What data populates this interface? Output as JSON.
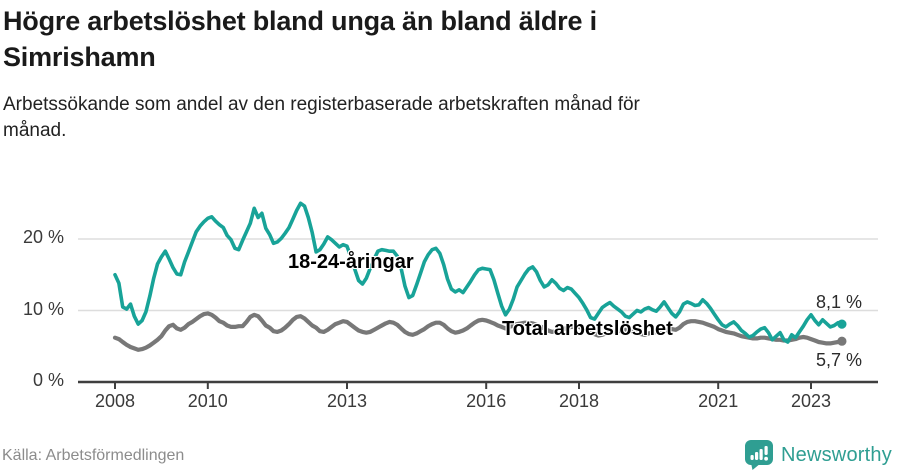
{
  "header": {
    "title_lines": [
      "Högre arbetslöshet bland unga än bland äldre i",
      "Simrishamn"
    ],
    "subtitle_lines": [
      "Arbetssökande som andel av den registerbaserade arbetskraften månad för",
      "månad."
    ]
  },
  "footer": {
    "source": "Källa: Arbetsförmedlingen",
    "brand": "Newsworthy"
  },
  "colors": {
    "youth": "#18a398",
    "total": "#787878",
    "brand": "#2f9e92",
    "grid": "#dddddd",
    "axis": "#3f3f3f",
    "tick_text": "#3a3a3a"
  },
  "chart_data": {
    "type": "line",
    "title": "Högre arbetslöshet bland unga än bland äldre i Simrishamn",
    "subtitle": "Arbetssökande som andel av den registerbaserade arbetskraften månad för månad.",
    "unit": "%",
    "grid": "horizontal",
    "legend_position": "inline-labels",
    "x_start_year": 2008,
    "x_months_per_step": 1,
    "x_end_label_period": "sep 2023",
    "x_tick_years": [
      2008,
      2010,
      2013,
      2016,
      2018,
      2021,
      2023
    ],
    "x_tick_labels": [
      "2008",
      "2010",
      "2013",
      "2016",
      "2018",
      "2021",
      "2023"
    ],
    "y_ticks": [
      0,
      10,
      20
    ],
    "y_tick_labels": [
      "0 %",
      "10 %",
      "20 %"
    ],
    "ylim": [
      0,
      26.5
    ],
    "series": [
      {
        "name": "18-24-åringar",
        "color": "#18a398",
        "end_label": "8,1 %",
        "end_value": 8.1,
        "values": [
          15.0,
          13.8,
          10.5,
          10.2,
          10.9,
          9.2,
          8.1,
          8.6,
          9.8,
          12.0,
          14.5,
          16.5,
          17.5,
          18.3,
          17.2,
          16.0,
          15.1,
          15.0,
          16.8,
          18.2,
          19.6,
          21.0,
          21.8,
          22.4,
          22.9,
          23.1,
          22.5,
          22.0,
          21.6,
          20.5,
          19.9,
          18.7,
          18.5,
          19.8,
          21.0,
          22.2,
          24.3,
          23.0,
          23.6,
          21.5,
          20.6,
          19.4,
          19.6,
          20.1,
          20.8,
          21.6,
          22.8,
          24.0,
          25.0,
          24.6,
          23.0,
          20.9,
          18.2,
          18.5,
          19.3,
          20.3,
          19.9,
          19.4,
          18.9,
          19.2,
          19.0,
          17.5,
          15.8,
          14.2,
          13.7,
          14.5,
          15.9,
          17.2,
          18.3,
          18.5,
          18.4,
          18.3,
          18.3,
          17.6,
          15.9,
          13.4,
          11.8,
          12.1,
          13.6,
          15.2,
          16.8,
          17.8,
          18.5,
          18.7,
          18.0,
          16.4,
          14.4,
          13.0,
          12.6,
          12.9,
          12.5,
          13.3,
          14.1,
          15.0,
          15.7,
          15.9,
          15.8,
          15.7,
          14.3,
          12.4,
          10.6,
          9.4,
          10.2,
          11.6,
          13.3,
          14.2,
          15.1,
          15.8,
          16.1,
          15.4,
          14.2,
          13.3,
          13.6,
          14.3,
          13.8,
          13.1,
          12.8,
          13.2,
          13.0,
          12.4,
          11.8,
          11.0,
          10.1,
          9.0,
          8.8,
          9.6,
          10.4,
          10.8,
          11.1,
          10.6,
          10.2,
          9.8,
          9.2,
          9.0,
          9.5,
          10.0,
          9.8,
          10.2,
          10.4,
          10.1,
          9.9,
          10.5,
          11.2,
          10.4,
          9.6,
          9.1,
          9.8,
          10.9,
          11.2,
          11.0,
          10.7,
          10.8,
          11.5,
          11.0,
          10.3,
          9.5,
          8.7,
          8.0,
          7.7,
          8.1,
          8.4,
          7.9,
          7.2,
          6.8,
          6.3,
          6.5,
          7.0,
          7.4,
          7.6,
          6.9,
          5.9,
          6.4,
          6.9,
          5.9,
          5.6,
          6.6,
          6.2,
          7.0,
          7.8,
          8.7,
          9.4,
          8.6,
          8.0,
          8.7,
          8.2,
          7.7,
          7.9,
          8.3,
          8.1
        ]
      },
      {
        "name": "Total arbetslöshet",
        "color": "#787878",
        "end_label": "5,7 %",
        "end_value": 5.7,
        "values": [
          6.2,
          6.0,
          5.6,
          5.2,
          4.9,
          4.7,
          4.5,
          4.6,
          4.8,
          5.1,
          5.5,
          5.9,
          6.4,
          7.2,
          7.8,
          8.0,
          7.5,
          7.3,
          7.6,
          8.1,
          8.4,
          8.8,
          9.2,
          9.5,
          9.6,
          9.4,
          9.0,
          8.5,
          8.3,
          7.9,
          7.7,
          7.7,
          7.8,
          7.8,
          8.4,
          9.1,
          9.4,
          9.2,
          8.6,
          7.9,
          7.6,
          7.1,
          7.0,
          7.2,
          7.6,
          8.1,
          8.7,
          9.1,
          9.2,
          8.9,
          8.4,
          7.9,
          7.6,
          7.1,
          7.0,
          7.3,
          7.7,
          8.1,
          8.3,
          8.5,
          8.4,
          8.0,
          7.6,
          7.2,
          7.0,
          6.9,
          7.0,
          7.3,
          7.6,
          7.9,
          8.2,
          8.4,
          8.3,
          8.0,
          7.5,
          7.0,
          6.7,
          6.6,
          6.8,
          7.1,
          7.4,
          7.8,
          8.1,
          8.3,
          8.3,
          8.0,
          7.5,
          7.1,
          6.9,
          7.0,
          7.2,
          7.5,
          7.9,
          8.3,
          8.6,
          8.7,
          8.6,
          8.4,
          8.2,
          7.9,
          7.7,
          7.5,
          7.7,
          7.9,
          8.1,
          8.2,
          8.3,
          8.3,
          8.2,
          8.0,
          7.8,
          7.5,
          7.2,
          7.0,
          7.1,
          7.3,
          7.4,
          7.6,
          7.7,
          7.8,
          7.7,
          7.5,
          7.2,
          6.9,
          6.7,
          6.5,
          6.6,
          6.8,
          6.9,
          7.0,
          7.1,
          7.2,
          7.3,
          7.2,
          7.0,
          6.8,
          6.7,
          6.6,
          6.8,
          6.9,
          7.0,
          7.1,
          7.2,
          7.3,
          7.4,
          7.3,
          7.6,
          8.1,
          8.4,
          8.5,
          8.5,
          8.4,
          8.3,
          8.1,
          7.9,
          7.7,
          7.4,
          7.2,
          7.0,
          6.9,
          6.8,
          6.6,
          6.4,
          6.3,
          6.2,
          6.1,
          6.1,
          6.2,
          6.2,
          6.1,
          6.0,
          5.9,
          5.9,
          5.8,
          5.8,
          5.9,
          6.0,
          6.2,
          6.3,
          6.2,
          6.0,
          5.8,
          5.6,
          5.5,
          5.4,
          5.4,
          5.5,
          5.6,
          5.7
        ]
      }
    ]
  }
}
